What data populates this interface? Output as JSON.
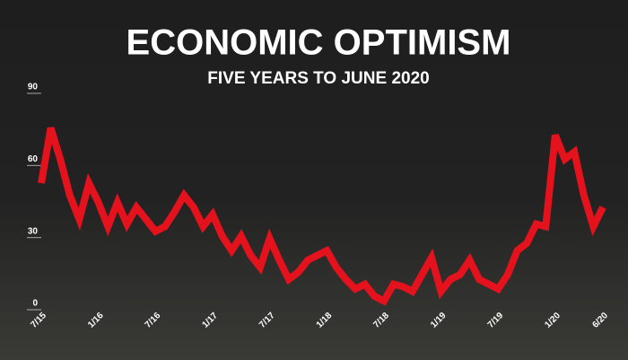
{
  "chart_data": {
    "type": "line",
    "title": "ECONOMIC OPTIMISM",
    "subtitle": "FIVE YEARS TO JUNE 2020",
    "categories": [
      "7/15",
      null,
      null,
      null,
      null,
      null,
      "1/16",
      null,
      null,
      null,
      null,
      null,
      "7/16",
      null,
      null,
      null,
      null,
      null,
      "1/17",
      null,
      null,
      null,
      null,
      null,
      "7/17",
      null,
      null,
      null,
      null,
      null,
      "1/18",
      null,
      null,
      null,
      null,
      null,
      "7/18",
      null,
      null,
      null,
      null,
      null,
      "1/19",
      null,
      null,
      null,
      null,
      null,
      "7/19",
      null,
      null,
      null,
      null,
      null,
      "1/20",
      null,
      null,
      null,
      null,
      "6/20"
    ],
    "values": [
      50,
      73,
      60,
      45,
      35,
      50,
      42,
      32,
      42,
      33,
      40,
      35,
      30,
      32,
      38,
      45,
      40,
      32,
      37,
      28,
      22,
      28,
      20,
      15,
      27,
      18,
      10,
      13,
      18,
      20,
      22,
      15,
      10,
      6,
      8,
      3,
      1,
      8,
      7,
      5,
      12,
      19,
      5,
      10,
      12,
      18,
      10,
      8,
      6,
      12,
      22,
      25,
      33,
      32,
      70,
      60,
      63,
      45,
      32,
      40
    ],
    "color": "#e3121c",
    "ylim": [
      0,
      90
    ],
    "yticks": [
      0,
      30,
      60,
      90
    ],
    "grid": false
  }
}
